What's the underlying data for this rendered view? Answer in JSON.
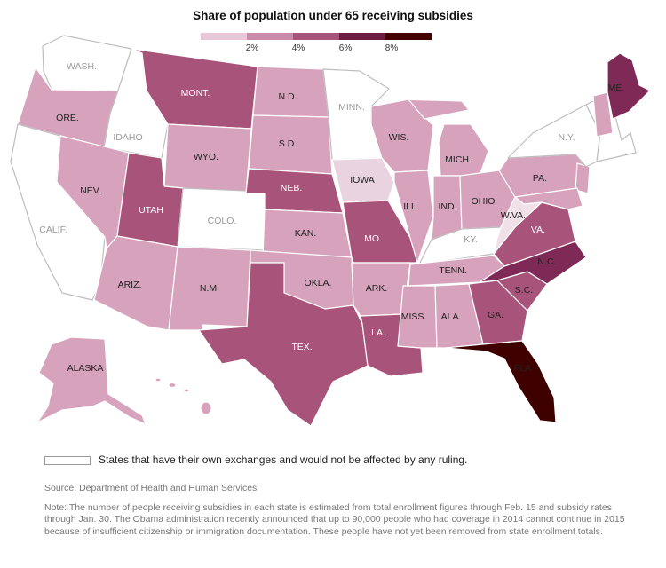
{
  "title": "Share of population under 65 receiving subsidies",
  "legend": {
    "colors": [
      "#e8c8d8",
      "#cc8aaa",
      "#a8537a",
      "#6e1c42",
      "#450000"
    ],
    "ticks": [
      "2%",
      "4%",
      "6%",
      "8%"
    ]
  },
  "colors": {
    "own_exchange": "#ffffff",
    "iowa": "#ead3e0",
    "wva": "#f0e0e8",
    "light": "#d6a2bc",
    "mid": "#bc7a9d",
    "dark": "#a8537a",
    "darker": "#7f2a56",
    "darkest": "#3f0000",
    "territory": "#d6a2bc"
  },
  "states": [
    {
      "name": "WASH.",
      "color": "own_exchange"
    },
    {
      "name": "ORE.",
      "color": "light"
    },
    {
      "name": "CALIF.",
      "color": "own_exchange"
    },
    {
      "name": "IDAHO",
      "color": "own_exchange"
    },
    {
      "name": "NEV.",
      "color": "light"
    },
    {
      "name": "MONT.",
      "color": "dark"
    },
    {
      "name": "WYO.",
      "color": "light"
    },
    {
      "name": "UTAH",
      "color": "dark"
    },
    {
      "name": "COLO.",
      "color": "own_exchange"
    },
    {
      "name": "ARIZ.",
      "color": "light"
    },
    {
      "name": "N.M.",
      "color": "light"
    },
    {
      "name": "N.D.",
      "color": "light"
    },
    {
      "name": "S.D.",
      "color": "light"
    },
    {
      "name": "NEB.",
      "color": "dark"
    },
    {
      "name": "KAN.",
      "color": "light"
    },
    {
      "name": "OKLA.",
      "color": "light"
    },
    {
      "name": "TEX.",
      "color": "dark"
    },
    {
      "name": "MINN.",
      "color": "own_exchange"
    },
    {
      "name": "IOWA",
      "color": "iowa"
    },
    {
      "name": "MO.",
      "color": "dark"
    },
    {
      "name": "ARK.",
      "color": "light"
    },
    {
      "name": "LA.",
      "color": "dark"
    },
    {
      "name": "WIS.",
      "color": "light"
    },
    {
      "name": "ILL.",
      "color": "light"
    },
    {
      "name": "MICH.",
      "color": "light"
    },
    {
      "name": "IND.",
      "color": "light"
    },
    {
      "name": "OHIO",
      "color": "light"
    },
    {
      "name": "KY.",
      "color": "own_exchange"
    },
    {
      "name": "TENN.",
      "color": "light"
    },
    {
      "name": "MISS.",
      "color": "light"
    },
    {
      "name": "ALA.",
      "color": "light"
    },
    {
      "name": "GA.",
      "color": "dark"
    },
    {
      "name": "FLA.",
      "color": "darkest"
    },
    {
      "name": "S.C.",
      "color": "dark"
    },
    {
      "name": "N.C.",
      "color": "darker"
    },
    {
      "name": "VA.",
      "color": "dark"
    },
    {
      "name": "W.VA.",
      "color": "wva"
    },
    {
      "name": "PA.",
      "color": "light"
    },
    {
      "name": "N.Y.",
      "color": "own_exchange"
    },
    {
      "name": "ME.",
      "color": "darker"
    },
    {
      "name": "ALASKA",
      "color": "light"
    }
  ],
  "key": {
    "label": "States that have their own exchanges and would not be affected by any ruling."
  },
  "source": "Source: Department of Health and Human Services",
  "note": "Note: The number of people receiving subsidies in each state is estimated from total enrollment figures through Feb. 15 and subsidy rates through Jan. 30. The Obama administration recently announced that up to 90,000 people who had coverage in 2014 cannot continue in 2015 because of insufficient citizenship or immigration documentation. These people have not yet been removed from state enrollment totals."
}
